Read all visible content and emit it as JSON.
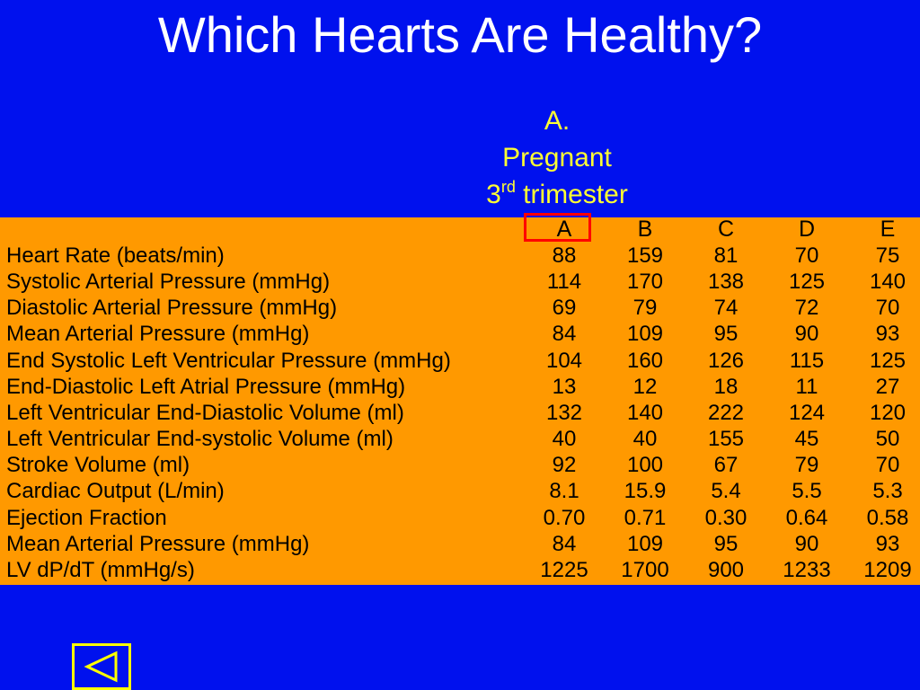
{
  "title": "Which Hearts Are Healthy?",
  "subtitle": {
    "line1": "A.",
    "line2": "Pregnant",
    "line3_prefix": "3",
    "line3_sup": "rd",
    "line3_suffix": " trimester"
  },
  "colors": {
    "background": "#0011ee",
    "panel": "#ff9900",
    "title_text": "#ffffff",
    "subtitle_text": "#ffff33",
    "highlight_border": "#ff0000",
    "nav_button": "#ffff00"
  },
  "highlighted_column": "A",
  "table": {
    "columns": [
      "A",
      "B",
      "C",
      "D",
      "E"
    ],
    "rows": [
      {
        "label": "Heart Rate (beats/min)",
        "values": [
          "88",
          "159",
          "81",
          "70",
          "75"
        ]
      },
      {
        "label": "Systolic Arterial Pressure (mmHg)",
        "values": [
          "114",
          "170",
          "138",
          "125",
          "140"
        ]
      },
      {
        "label": "Diastolic Arterial Pressure (mmHg)",
        "values": [
          "69",
          "79",
          "74",
          "72",
          "70"
        ]
      },
      {
        "label": "Mean Arterial Pressure (mmHg)",
        "values": [
          "84",
          "109",
          "95",
          "90",
          "93"
        ]
      },
      {
        "label": "End Systolic Left Ventricular Pressure (mmHg)",
        "values": [
          "104",
          "160",
          "126",
          "115",
          "125"
        ]
      },
      {
        "label": "End-Diastolic Left Atrial Pressure (mmHg)",
        "values": [
          "13",
          "12",
          "18",
          "11",
          "27"
        ]
      },
      {
        "label": "Left Ventricular End-Diastolic Volume (ml)",
        "values": [
          "132",
          "140",
          "222",
          "124",
          "120"
        ]
      },
      {
        "label": "Left Ventricular End-systolic Volume (ml)",
        "values": [
          "40",
          "40",
          "155",
          "45",
          "50"
        ]
      },
      {
        "label": "Stroke Volume (ml)",
        "values": [
          "92",
          "100",
          "67",
          "79",
          "70"
        ]
      },
      {
        "label": "Cardiac Output (L/min)",
        "values": [
          "8.1",
          "15.9",
          "5.4",
          "5.5",
          "5.3"
        ]
      },
      {
        "label": "Ejection Fraction",
        "values": [
          "0.70",
          "0.71",
          "0.30",
          "0.64",
          "0.58"
        ]
      },
      {
        "label": "Mean Arterial Pressure (mmHg)",
        "values": [
          "84",
          "109",
          "95",
          "90",
          "93"
        ]
      },
      {
        "label": "LV dP/dT (mmHg/s)",
        "values": [
          "1225",
          "1700",
          "900",
          "1233",
          "1209"
        ]
      }
    ]
  },
  "nav": {
    "back_icon": "back-triangle-icon"
  }
}
